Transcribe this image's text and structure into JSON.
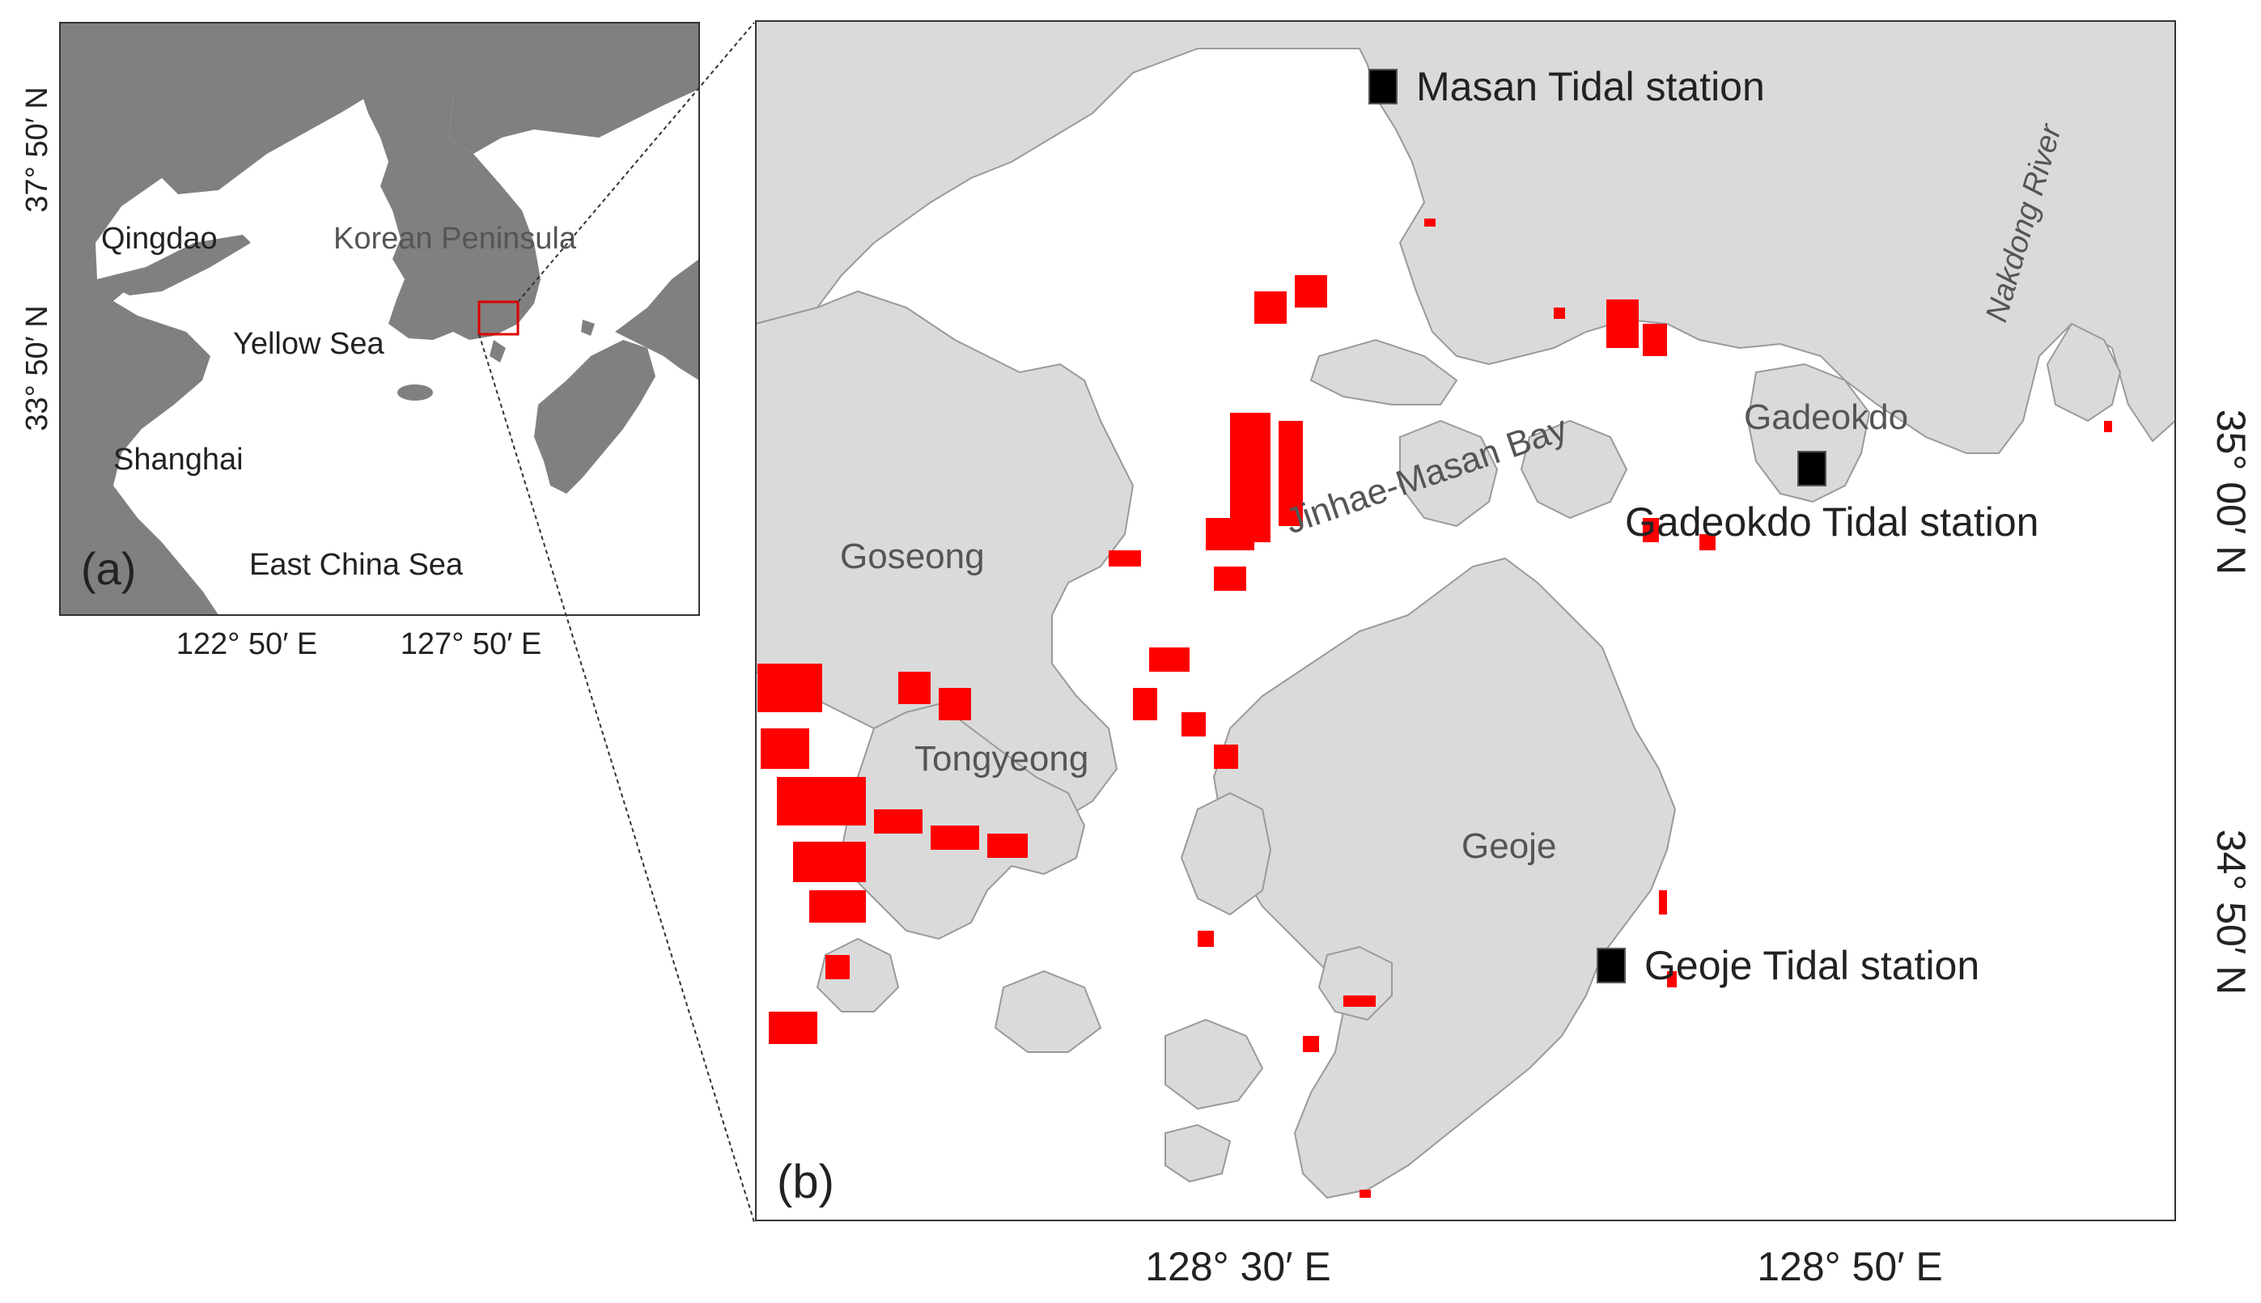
{
  "colors": {
    "land_overview": "#808080",
    "land_detail": "#dadada",
    "land_detail_edge": "#9a9a9a",
    "water": "#ffffff",
    "farms": "#ff0000",
    "station": "#000000",
    "frame": "#333333",
    "label_dark": "#222222",
    "label_grey": "#555555"
  },
  "panel_a": {
    "tag": "(a)",
    "places": {
      "qingdao": "Qingdao",
      "korean_peninsula": "Korean Peninsula",
      "yellow_sea": "Yellow Sea",
      "shanghai": "Shanghai",
      "east_china_sea": "East China Sea"
    },
    "lat_ticks": [
      "37° 50′ N",
      "33° 50′ N"
    ],
    "lon_ticks": [
      "122° 50′ E",
      "127° 50′ E"
    ]
  },
  "panel_b": {
    "tag": "(b)",
    "places": {
      "goseong": "Goseong",
      "tongyeong": "Tongyeong",
      "geoje": "Geoje",
      "gadeokdo": "Gadeokdo",
      "bay": "Jinhae-Masan Bay",
      "river": "Nakdong River"
    },
    "stations": {
      "masan": "Masan Tidal station",
      "gadeokdo": "Gadeokdo Tidal station",
      "geoje": "Geoje Tidal station"
    },
    "lat_ticks": [
      "35° 00′ N",
      "34° 50′ N"
    ],
    "lon_ticks": [
      "128° 30′ E",
      "128° 50′ E"
    ]
  }
}
